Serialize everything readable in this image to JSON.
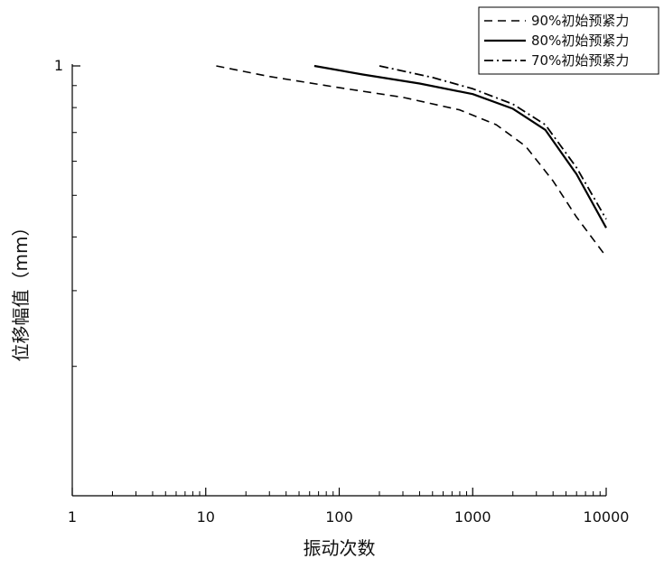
{
  "chart_data": {
    "type": "line",
    "xlabel": "振动次数",
    "ylabel": "位移幅值（mm）",
    "x_scale": "log",
    "y_scale": "log",
    "xlim": [
      1,
      10000
    ],
    "ylim": [
      0.1,
      1
    ],
    "x_ticks": [
      1,
      10,
      100,
      1000,
      10000
    ],
    "x_tick_labels": [
      "1",
      "10",
      "100",
      "1000",
      "10000"
    ],
    "y_ticks": [
      1
    ],
    "y_tick_labels": [
      "1"
    ],
    "grid": false,
    "legend_position": "top-right",
    "series": [
      {
        "name": "90%初始预紧力",
        "dash": "dash",
        "color": "#000000",
        "x": [
          12,
          30,
          100,
          300,
          800,
          1500,
          2500,
          4000,
          6000,
          10000
        ],
        "y": [
          1.0,
          0.945,
          0.89,
          0.845,
          0.79,
          0.73,
          0.65,
          0.54,
          0.445,
          0.36
        ]
      },
      {
        "name": "80%初始预紧力",
        "dash": "solid",
        "color": "#000000",
        "x": [
          65,
          150,
          400,
          1000,
          2000,
          3500,
          6000,
          10000
        ],
        "y": [
          1.0,
          0.955,
          0.91,
          0.86,
          0.795,
          0.71,
          0.56,
          0.42
        ]
      },
      {
        "name": "70%初始预紧力",
        "dash": "dashdot",
        "color": "#000000",
        "x": [
          200,
          500,
          1000,
          2000,
          3500,
          6000,
          10000
        ],
        "y": [
          1.0,
          0.94,
          0.885,
          0.815,
          0.73,
          0.58,
          0.44
        ]
      }
    ]
  }
}
